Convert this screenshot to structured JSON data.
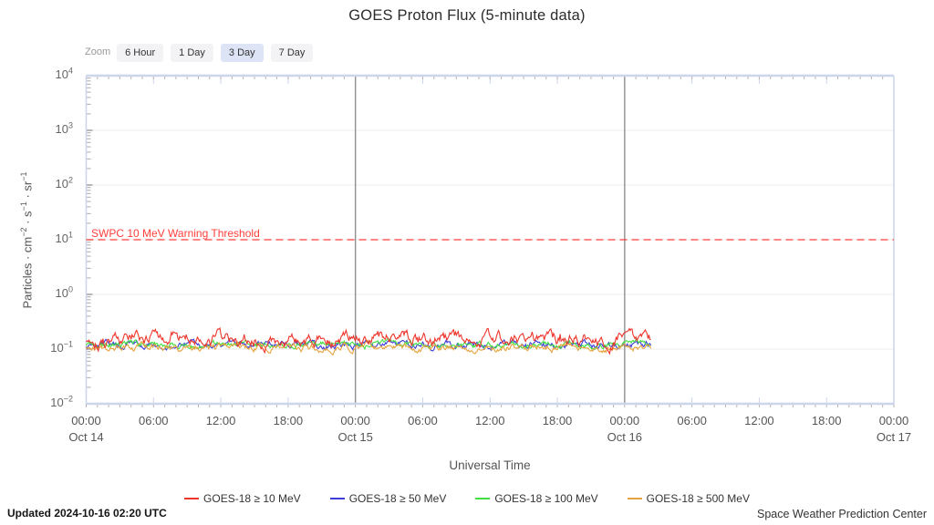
{
  "title": "GOES Proton Flux (5-minute data)",
  "toolbar": {
    "zoom_label": "Zoom",
    "buttons": [
      {
        "label": "6 Hour",
        "selected": false
      },
      {
        "label": "1 Day",
        "selected": false
      },
      {
        "label": "3 Day",
        "selected": true
      },
      {
        "label": "7 Day",
        "selected": false
      }
    ]
  },
  "chart_data": {
    "type": "line",
    "title": "GOES Proton Flux (5-minute data)",
    "xlabel": "Universal Time",
    "ylabel_parts": [
      {
        "t": "Particles · cm"
      },
      {
        "sup": "−2"
      },
      {
        "t": " · s"
      },
      {
        "sup": "−1"
      },
      {
        "t": " · sr"
      },
      {
        "sup": "−1"
      }
    ],
    "y_scale": "log",
    "ylim": [
      0.01,
      10000
    ],
    "y_ticks": [
      {
        "base": "10",
        "exp": "4",
        "value": 10000
      },
      {
        "base": "10",
        "exp": "3",
        "value": 1000
      },
      {
        "base": "10",
        "exp": "2",
        "value": 100
      },
      {
        "base": "10",
        "exp": "1",
        "value": 10
      },
      {
        "base": "10",
        "exp": "0",
        "value": 1
      },
      {
        "base": "10",
        "exp": "−1",
        "value": 0.1
      },
      {
        "base": "10",
        "exp": "−2",
        "value": 0.01
      }
    ],
    "x_range_hours": [
      0,
      72
    ],
    "x_major_ticks": [
      {
        "hour": 0,
        "label": "00:00"
      },
      {
        "hour": 6,
        "label": "06:00"
      },
      {
        "hour": 12,
        "label": "12:00"
      },
      {
        "hour": 18,
        "label": "18:00"
      },
      {
        "hour": 24,
        "label": "00:00"
      },
      {
        "hour": 30,
        "label": "06:00"
      },
      {
        "hour": 36,
        "label": "12:00"
      },
      {
        "hour": 42,
        "label": "18:00"
      },
      {
        "hour": 48,
        "label": "00:00"
      },
      {
        "hour": 54,
        "label": "06:00"
      },
      {
        "hour": 60,
        "label": "12:00"
      },
      {
        "hour": 66,
        "label": "18:00"
      },
      {
        "hour": 72,
        "label": "00:00"
      }
    ],
    "x_day_labels": [
      {
        "hour": 0,
        "label": "Oct 14"
      },
      {
        "hour": 24,
        "label": "Oct 15"
      },
      {
        "hour": 48,
        "label": "Oct 16"
      },
      {
        "hour": 72,
        "label": "Oct 17"
      }
    ],
    "day_line_hours": [
      24,
      48
    ],
    "grid_on": true,
    "threshold": {
      "label": "SWPC 10 MeV Warning Threshold",
      "value": 10,
      "color": "#ff3f3a"
    },
    "cadence_minutes": 5,
    "series": [
      {
        "name": "GOES-18 ≥ 10 MeV",
        "color": "#ee352c",
        "base_flux": 0.155,
        "noise_log10": 0.16,
        "start_hour": 0,
        "end_hour": 50.33
      },
      {
        "name": "GOES-18 ≥ 50 MeV",
        "color": "#3d3dd8",
        "base_flux": 0.12,
        "noise_log10": 0.09,
        "start_hour": 0,
        "end_hour": 50.33
      },
      {
        "name": "GOES-18 ≥ 100 MeV",
        "color": "#41e041",
        "base_flux": 0.122,
        "noise_log10": 0.08,
        "start_hour": 0,
        "end_hour": 50.33
      },
      {
        "name": "GOES-18 ≥ 500 MeV",
        "color": "#e8a33e",
        "base_flux": 0.108,
        "noise_log10": 0.09,
        "start_hour": 0,
        "end_hour": 50.33
      }
    ],
    "legend_position": "bottom"
  },
  "footer": {
    "updated": "Updated 2024-10-16 02:20 UTC",
    "credit": "Space Weather Prediction Center"
  }
}
